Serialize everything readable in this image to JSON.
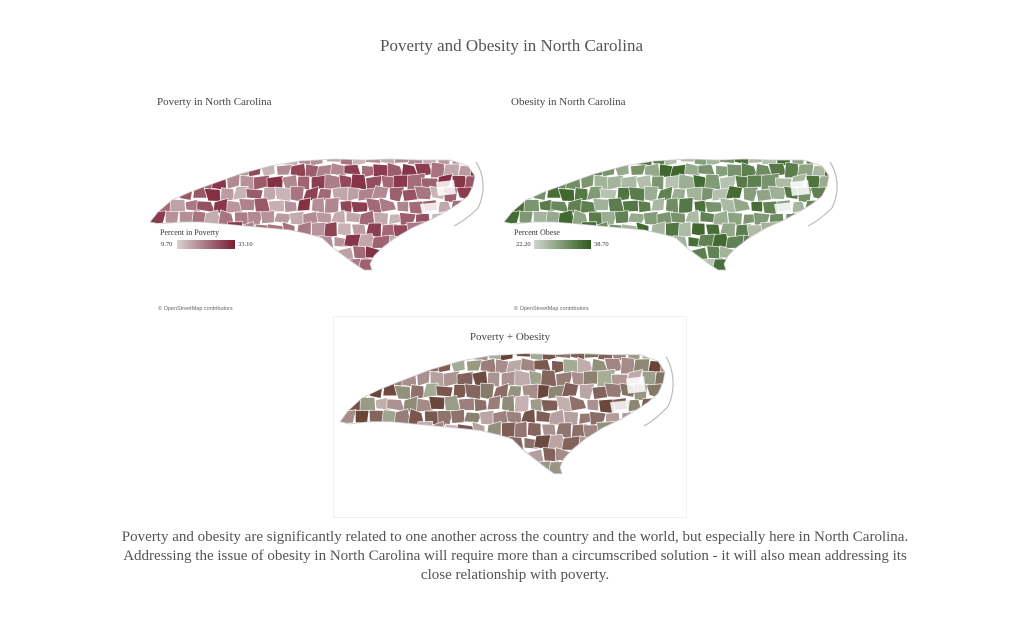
{
  "page": {
    "title": "Poverty and Obesity in North Carolina",
    "summary": "Poverty and obesity are significantly related to one another across the country and the world, but especially here in North Carolina.  Addressing the issue of obesity in North Carolina will require more than a circumscribed solution  - it will also mean addressing its close relationship with poverty."
  },
  "maps": [
    {
      "id": "poverty",
      "title": "Poverty in North Carolina",
      "legend_title": "Percent in Poverty",
      "legend_min": "9.70",
      "legend_max": "33.10",
      "color_low": "#d8d2d3",
      "color_high": "#7a1c32",
      "attribution": "© OpenStreetMap contributors"
    },
    {
      "id": "obesity",
      "title": "Obesity in North Carolina",
      "legend_title": "Percent Obese",
      "legend_min": "22.20",
      "legend_max": "38.70",
      "color_low": "#cfd6cc",
      "color_high": "#2e5a1b",
      "attribution": "© OpenStreetMap contributors"
    },
    {
      "id": "combined",
      "title": "Poverty + Obesity",
      "color_low": "#d9c9cd",
      "color_high": "#5a3326",
      "color_alt": "#a7b09a"
    }
  ]
}
